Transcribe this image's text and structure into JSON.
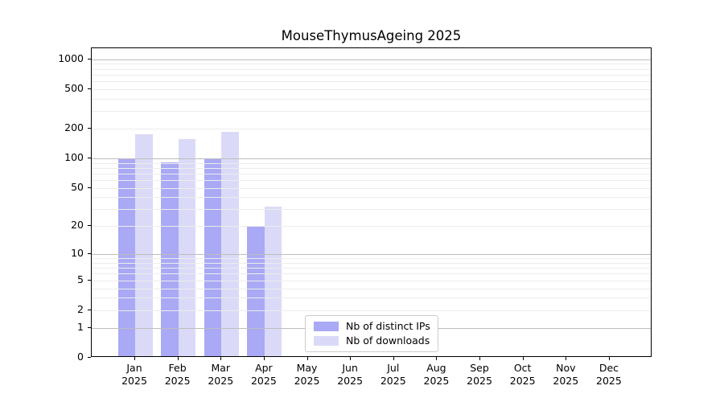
{
  "chart_data": {
    "type": "bar",
    "title": "MouseThymusAgeing 2025",
    "categories": [
      "Jan 2025",
      "Feb 2025",
      "Mar 2025",
      "Apr 2025",
      "May 2025",
      "Jun 2025",
      "Jul 2025",
      "Aug 2025",
      "Sep 2025",
      "Oct 2025",
      "Nov 2025",
      "Dec 2025"
    ],
    "series": [
      {
        "name": "Nb of distinct IPs",
        "color": "#a9a9f5",
        "values": [
          97,
          88,
          96,
          19,
          0,
          0,
          0,
          0,
          0,
          0,
          0,
          0
        ]
      },
      {
        "name": "Nb of downloads",
        "color": "#dadaf8",
        "values": [
          170,
          152,
          180,
          31,
          0,
          0,
          0,
          0,
          0,
          0,
          0,
          0
        ]
      }
    ],
    "yscale": "log1p",
    "yticks": [
      0,
      1,
      2,
      5,
      10,
      20,
      50,
      100,
      200,
      500,
      1000
    ],
    "ylim": [
      0,
      1300
    ],
    "xlabel": "",
    "ylabel": "",
    "grid": "horizontal, minor log lines, drawn over bars",
    "legend_position": "bottom-center-inside"
  },
  "colors": {
    "ips_bar": "#a9a9f5",
    "downloads_bar": "#dadaf8",
    "grid_major": "#bdbdbd",
    "grid_minor": "#ececec",
    "axis": "#000000",
    "legend_border": "#cccccc",
    "background": "#ffffff",
    "text": "#000000"
  }
}
